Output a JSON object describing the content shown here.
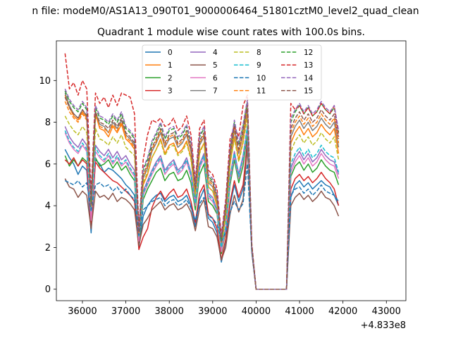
{
  "chart_data": {
    "type": "line",
    "title": "Quadrant 1 module wise count rates with 100.0s bins.",
    "suptitle": "n file: modeM0/AS1A13_090T01_9000006464_51801cztM0_level2_quad_clean",
    "xlabel": "",
    "ylabel": "",
    "x_offset_label": "+4.833e8",
    "xlim": [
      35400,
      43450
    ],
    "ylim": [
      -0.55,
      11.9
    ],
    "xticks": [
      36000,
      37000,
      38000,
      39000,
      40000,
      41000,
      42000,
      43000
    ],
    "xtick_labels": [
      "36000",
      "37000",
      "38000",
      "39000",
      "40000",
      "41000",
      "42000",
      "43000"
    ],
    "yticks": [
      0,
      2,
      4,
      6,
      8,
      10
    ],
    "ytick_labels": [
      "0",
      "2",
      "4",
      "6",
      "8",
      "10"
    ],
    "grid": false,
    "legend": {
      "placement": "top-center",
      "columns": 4
    },
    "x_start": 35600,
    "x_step": 100,
    "series": [
      {
        "name": "0",
        "color": "#1f77b4",
        "style": "solid",
        "values": [
          6.7,
          6.3,
          6.0,
          5.5,
          5.9,
          5.7,
          2.7,
          6.2,
          6.0,
          5.6,
          5.8,
          5.7,
          5.5,
          5.3,
          5.0,
          4.8,
          4.5,
          2.0,
          3.5,
          4.0,
          4.3,
          4.5,
          4.6,
          4.2,
          4.4,
          4.5,
          4.2,
          4.3,
          4.5,
          4.0,
          3.0,
          4.3,
          4.8,
          3.4,
          3.2,
          2.7,
          1.3,
          2.3,
          4.0,
          5.0,
          4.2,
          4.8,
          7.2,
          2.0,
          0.0,
          0.0,
          0.0,
          0.0,
          0.0,
          0.0,
          0.0,
          0.0,
          4.4,
          5.0,
          5.2,
          4.9,
          5.1,
          4.8,
          5.0,
          5.2,
          5.0,
          4.9,
          4.5,
          4.0
        ]
      },
      {
        "name": "1",
        "color": "#ff7f0e",
        "style": "solid",
        "values": [
          9.3,
          8.7,
          8.3,
          8.1,
          8.5,
          8.2,
          3.5,
          8.4,
          7.7,
          7.6,
          7.3,
          7.8,
          7.5,
          7.9,
          7.2,
          7.0,
          6.7,
          2.6,
          5.0,
          5.5,
          6.3,
          6.7,
          7.2,
          6.5,
          6.9,
          7.0,
          6.5,
          6.7,
          7.1,
          6.3,
          4.4,
          6.6,
          7.0,
          4.9,
          4.7,
          4.0,
          2.1,
          3.5,
          6.0,
          7.3,
          6.2,
          7.1,
          8.5,
          2.0,
          0.0,
          0.0,
          0.0,
          0.0,
          0.0,
          0.0,
          0.0,
          0.0,
          7.0,
          7.5,
          7.8,
          7.4,
          7.7,
          7.3,
          7.5,
          7.9,
          7.6,
          7.4,
          7.7,
          6.5
        ]
      },
      {
        "name": "2",
        "color": "#2ca02c",
        "style": "solid",
        "values": [
          6.4,
          5.9,
          6.2,
          5.9,
          6.3,
          6.1,
          3.5,
          6.3,
          5.9,
          6.0,
          6.2,
          5.8,
          6.1,
          5.7,
          5.9,
          5.5,
          5.2,
          2.1,
          4.3,
          4.8,
          5.2,
          5.6,
          5.8,
          5.2,
          5.5,
          5.6,
          5.2,
          5.3,
          5.7,
          5.1,
          3.8,
          5.5,
          6.0,
          4.2,
          4.0,
          3.6,
          1.7,
          2.8,
          5.0,
          6.2,
          5.1,
          5.9,
          7.5,
          2.0,
          0.0,
          0.0,
          0.0,
          0.0,
          0.0,
          0.0,
          0.0,
          0.0,
          5.4,
          5.9,
          6.1,
          5.7,
          6.0,
          5.6,
          5.8,
          6.2,
          5.9,
          5.7,
          5.6,
          5.0
        ]
      },
      {
        "name": "3",
        "color": "#d62728",
        "style": "solid",
        "values": [
          6.2,
          6.0,
          6.3,
          5.9,
          6.2,
          6.0,
          3.1,
          6.1,
          5.8,
          5.6,
          5.4,
          5.2,
          5.1,
          4.9,
          4.7,
          4.5,
          4.2,
          1.9,
          2.5,
          2.9,
          3.9,
          4.4,
          4.7,
          4.3,
          4.6,
          4.8,
          4.4,
          4.5,
          4.8,
          4.2,
          3.2,
          4.6,
          5.0,
          3.6,
          3.4,
          2.9,
          1.4,
          2.4,
          4.2,
          5.2,
          4.4,
          5.0,
          7.0,
          1.8,
          0.0,
          0.0,
          0.0,
          0.0,
          0.0,
          0.0,
          0.0,
          0.0,
          4.8,
          5.3,
          5.5,
          5.2,
          5.4,
          5.1,
          5.3,
          5.6,
          5.3,
          5.1,
          4.8,
          4.0
        ]
      },
      {
        "name": "4",
        "color": "#9467bd",
        "style": "solid",
        "values": [
          7.8,
          7.3,
          7.0,
          6.8,
          7.2,
          6.9,
          3.6,
          6.9,
          6.6,
          6.4,
          6.7,
          6.3,
          6.6,
          6.2,
          6.4,
          6.0,
          5.7,
          2.4,
          4.7,
          5.2,
          5.7,
          6.1,
          6.4,
          5.7,
          6.0,
          6.2,
          5.7,
          5.9,
          6.3,
          5.6,
          4.2,
          6.0,
          6.5,
          4.6,
          4.4,
          3.8,
          1.9,
          3.0,
          5.4,
          6.6,
          5.5,
          6.4,
          7.8,
          2.0,
          0.0,
          0.0,
          0.0,
          0.0,
          0.0,
          0.0,
          0.0,
          0.0,
          5.8,
          6.3,
          6.6,
          6.2,
          6.5,
          6.1,
          6.3,
          6.7,
          6.4,
          6.2,
          6.1,
          5.5
        ]
      },
      {
        "name": "5",
        "color": "#8c564b",
        "style": "solid",
        "values": [
          5.3,
          4.9,
          4.8,
          4.4,
          4.7,
          4.5,
          2.9,
          4.7,
          4.4,
          4.5,
          4.3,
          4.6,
          4.2,
          4.4,
          4.3,
          4.1,
          3.8,
          2.1,
          3.1,
          3.4,
          3.8,
          4.0,
          4.2,
          3.8,
          4.0,
          4.1,
          3.8,
          3.9,
          4.1,
          3.7,
          2.8,
          3.9,
          4.3,
          3.0,
          2.9,
          2.5,
          1.4,
          2.0,
          3.6,
          4.5,
          3.7,
          4.3,
          6.8,
          1.8,
          0.0,
          0.0,
          0.0,
          0.0,
          0.0,
          0.0,
          0.0,
          0.0,
          4.0,
          4.4,
          4.6,
          4.3,
          4.5,
          4.2,
          4.4,
          4.7,
          4.4,
          4.3,
          4.0,
          3.5
        ]
      },
      {
        "name": "6",
        "color": "#e377c2",
        "style": "solid",
        "values": [
          7.5,
          7.0,
          6.7,
          6.5,
          6.9,
          6.6,
          3.3,
          6.6,
          6.3,
          6.1,
          6.4,
          6.0,
          6.3,
          5.9,
          6.1,
          5.7,
          5.4,
          2.3,
          4.5,
          5.0,
          5.5,
          5.9,
          6.2,
          5.5,
          5.8,
          6.0,
          5.5,
          5.7,
          6.1,
          5.4,
          4.0,
          5.8,
          6.3,
          4.4,
          4.2,
          3.7,
          1.8,
          2.9,
          5.2,
          6.4,
          5.3,
          6.2,
          7.7,
          2.0,
          0.0,
          0.0,
          0.0,
          0.0,
          0.0,
          0.0,
          0.0,
          0.0,
          5.6,
          6.1,
          6.4,
          6.0,
          6.3,
          5.9,
          6.1,
          6.5,
          6.2,
          6.0,
          5.9,
          5.3
        ]
      },
      {
        "name": "7",
        "color": "#7f7f7f",
        "style": "solid",
        "values": [
          9.4,
          8.8,
          8.4,
          8.2,
          8.6,
          8.3,
          3.8,
          8.5,
          7.9,
          7.8,
          7.5,
          8.0,
          7.7,
          8.1,
          7.4,
          7.2,
          6.9,
          2.7,
          5.3,
          5.8,
          6.6,
          7.0,
          7.5,
          6.8,
          7.2,
          7.3,
          6.8,
          7.0,
          7.4,
          6.6,
          4.6,
          6.9,
          7.3,
          5.1,
          4.9,
          4.2,
          2.2,
          3.7,
          6.3,
          7.6,
          6.5,
          7.4,
          8.6,
          2.0,
          0.0,
          0.0,
          0.0,
          0.0,
          0.0,
          0.0,
          0.0,
          0.0,
          7.3,
          7.8,
          8.1,
          7.7,
          8.0,
          7.6,
          7.8,
          8.2,
          7.9,
          7.7,
          8.0,
          6.8
        ]
      },
      {
        "name": "8",
        "color": "#bcbd22",
        "style": "dashed",
        "values": [
          8.3,
          7.9,
          7.6,
          7.4,
          7.8,
          7.5,
          3.9,
          7.7,
          7.2,
          7.1,
          6.9,
          7.3,
          7.0,
          7.4,
          6.8,
          6.6,
          6.4,
          2.6,
          5.1,
          5.6,
          6.3,
          6.7,
          7.1,
          6.4,
          6.8,
          6.9,
          6.4,
          6.6,
          7.0,
          6.2,
          4.5,
          6.5,
          7.0,
          4.9,
          4.7,
          4.1,
          2.1,
          3.5,
          6.0,
          7.2,
          6.1,
          7.0,
          8.2,
          2.0,
          0.0,
          0.0,
          0.0,
          0.0,
          0.0,
          0.0,
          0.0,
          0.0,
          6.6,
          7.1,
          7.4,
          7.0,
          7.3,
          6.9,
          7.1,
          7.5,
          7.2,
          7.0,
          7.3,
          6.2
        ]
      },
      {
        "name": "9",
        "color": "#17becf",
        "style": "dashed",
        "values": [
          7.6,
          7.1,
          6.8,
          6.6,
          7.0,
          6.7,
          3.7,
          6.8,
          6.4,
          6.2,
          6.5,
          6.1,
          6.4,
          6.0,
          6.2,
          5.8,
          5.5,
          2.5,
          4.6,
          5.1,
          5.6,
          6.0,
          6.3,
          5.6,
          5.9,
          6.1,
          5.6,
          5.8,
          6.2,
          5.5,
          4.1,
          5.9,
          6.4,
          4.5,
          4.3,
          3.8,
          2.0,
          3.0,
          5.3,
          6.5,
          5.4,
          6.3,
          7.8,
          2.0,
          0.0,
          0.0,
          0.0,
          0.0,
          0.0,
          0.0,
          0.0,
          0.0,
          6.0,
          6.5,
          6.8,
          6.4,
          6.7,
          6.3,
          6.5,
          6.9,
          6.6,
          6.4,
          6.3,
          5.6
        ]
      },
      {
        "name": "10",
        "color": "#1f77b4",
        "style": "dashed",
        "values": [
          5.2,
          5.1,
          5.0,
          5.2,
          4.9,
          5.1,
          3.8,
          5.0,
          5.1,
          4.9,
          5.0,
          4.7,
          4.9,
          4.6,
          4.8,
          4.5,
          4.3,
          2.6,
          3.8,
          4.0,
          4.2,
          4.3,
          4.4,
          4.0,
          4.2,
          4.3,
          4.0,
          4.1,
          4.3,
          3.9,
          3.3,
          4.1,
          4.4,
          3.5,
          3.4,
          3.1,
          2.3,
          2.7,
          3.7,
          4.2,
          3.8,
          4.1,
          6.0,
          1.8,
          0.0,
          0.0,
          0.0,
          0.0,
          0.0,
          0.0,
          0.0,
          0.0,
          4.5,
          4.8,
          4.9,
          4.6,
          4.8,
          4.5,
          4.7,
          5.0,
          4.7,
          4.6,
          4.5,
          4.2
        ]
      },
      {
        "name": "11",
        "color": "#ff7f0e",
        "style": "dashed",
        "values": [
          9.0,
          8.5,
          8.2,
          8.0,
          8.4,
          8.1,
          4.0,
          8.3,
          7.8,
          7.7,
          7.5,
          7.9,
          7.6,
          8.0,
          7.3,
          7.1,
          6.8,
          2.7,
          5.4,
          5.9,
          6.7,
          7.1,
          7.6,
          6.9,
          7.3,
          7.4,
          6.9,
          7.1,
          7.5,
          6.7,
          4.7,
          7.0,
          7.4,
          5.2,
          5.0,
          4.3,
          2.3,
          3.8,
          6.4,
          7.7,
          6.6,
          7.5,
          8.7,
          2.1,
          0.0,
          0.0,
          0.0,
          0.0,
          0.0,
          0.0,
          0.0,
          0.0,
          7.5,
          8.0,
          8.3,
          7.9,
          8.2,
          7.8,
          8.0,
          8.4,
          8.1,
          7.9,
          8.2,
          7.0
        ]
      },
      {
        "name": "12",
        "color": "#2ca02c",
        "style": "dashed",
        "values": [
          9.5,
          9.0,
          8.7,
          8.5,
          8.9,
          8.6,
          4.2,
          8.7,
          8.2,
          8.1,
          7.9,
          8.3,
          8.0,
          8.4,
          7.7,
          7.5,
          7.2,
          2.8,
          5.7,
          6.2,
          7.0,
          7.4,
          7.9,
          7.2,
          7.6,
          7.7,
          7.2,
          7.4,
          7.8,
          7.0,
          4.9,
          7.3,
          7.7,
          5.4,
          5.2,
          4.5,
          2.4,
          4.0,
          6.7,
          8.0,
          6.9,
          7.8,
          9.0,
          2.1,
          0.0,
          0.0,
          0.0,
          0.0,
          0.0,
          0.0,
          0.0,
          0.0,
          8.0,
          8.5,
          8.8,
          8.4,
          8.7,
          8.3,
          8.5,
          8.9,
          8.6,
          8.4,
          8.7,
          7.5
        ]
      },
      {
        "name": "13",
        "color": "#d62728",
        "style": "dashed",
        "values": [
          11.3,
          9.6,
          9.9,
          9.3,
          10.0,
          9.6,
          4.6,
          9.4,
          8.9,
          9.2,
          8.7,
          9.3,
          8.8,
          9.4,
          9.3,
          9.2,
          8.4,
          2.9,
          6.2,
          7.4,
          8.1,
          8.0,
          8.2,
          7.8,
          7.9,
          8.2,
          7.6,
          7.8,
          8.3,
          7.4,
          5.2,
          7.7,
          8.1,
          5.7,
          5.5,
          4.8,
          2.6,
          4.3,
          7.2,
          7.8,
          7.3,
          8.8,
          9.3,
          2.2,
          0.0,
          0.0,
          0.0,
          0.0,
          0.0,
          0.0,
          0.0,
          0.0,
          8.9,
          8.6,
          8.8,
          8.4,
          8.7,
          8.3,
          8.5,
          8.9,
          8.6,
          8.4,
          8.8,
          7.3
        ]
      },
      {
        "name": "14",
        "color": "#9467bd",
        "style": "dashed",
        "values": [
          9.6,
          9.1,
          8.8,
          8.6,
          9.0,
          8.7,
          4.3,
          8.8,
          8.3,
          8.2,
          8.0,
          8.4,
          8.1,
          8.5,
          7.8,
          7.6,
          7.3,
          2.8,
          5.8,
          6.3,
          7.1,
          7.5,
          8.0,
          7.3,
          7.7,
          7.8,
          7.3,
          7.5,
          7.9,
          7.1,
          5.0,
          7.4,
          7.8,
          5.5,
          5.3,
          4.6,
          2.5,
          4.1,
          6.8,
          8.1,
          7.0,
          7.9,
          9.1,
          2.1,
          0.0,
          0.0,
          0.0,
          0.0,
          0.0,
          0.0,
          0.0,
          0.0,
          8.2,
          8.6,
          8.9,
          8.5,
          8.8,
          8.4,
          8.6,
          9.0,
          8.7,
          8.5,
          8.8,
          7.6
        ]
      },
      {
        "name": "15",
        "color": "#8c564b",
        "style": "dashed",
        "values": [
          9.2,
          8.7,
          8.4,
          8.2,
          8.6,
          8.3,
          4.1,
          8.5,
          8.0,
          7.9,
          7.7,
          8.1,
          7.8,
          8.2,
          7.5,
          7.3,
          7.0,
          2.7,
          5.5,
          6.0,
          6.8,
          7.2,
          7.7,
          7.0,
          7.4,
          7.5,
          7.0,
          7.2,
          7.6,
          6.8,
          4.8,
          7.1,
          7.5,
          5.3,
          5.1,
          4.4,
          2.3,
          3.9,
          6.5,
          7.8,
          6.7,
          7.6,
          8.8,
          2.1,
          0.0,
          0.0,
          0.0,
          0.0,
          0.0,
          0.0,
          0.0,
          0.0,
          7.7,
          8.2,
          8.5,
          8.1,
          8.4,
          8.0,
          8.2,
          8.6,
          8.3,
          8.1,
          8.4,
          7.2
        ]
      }
    ]
  }
}
